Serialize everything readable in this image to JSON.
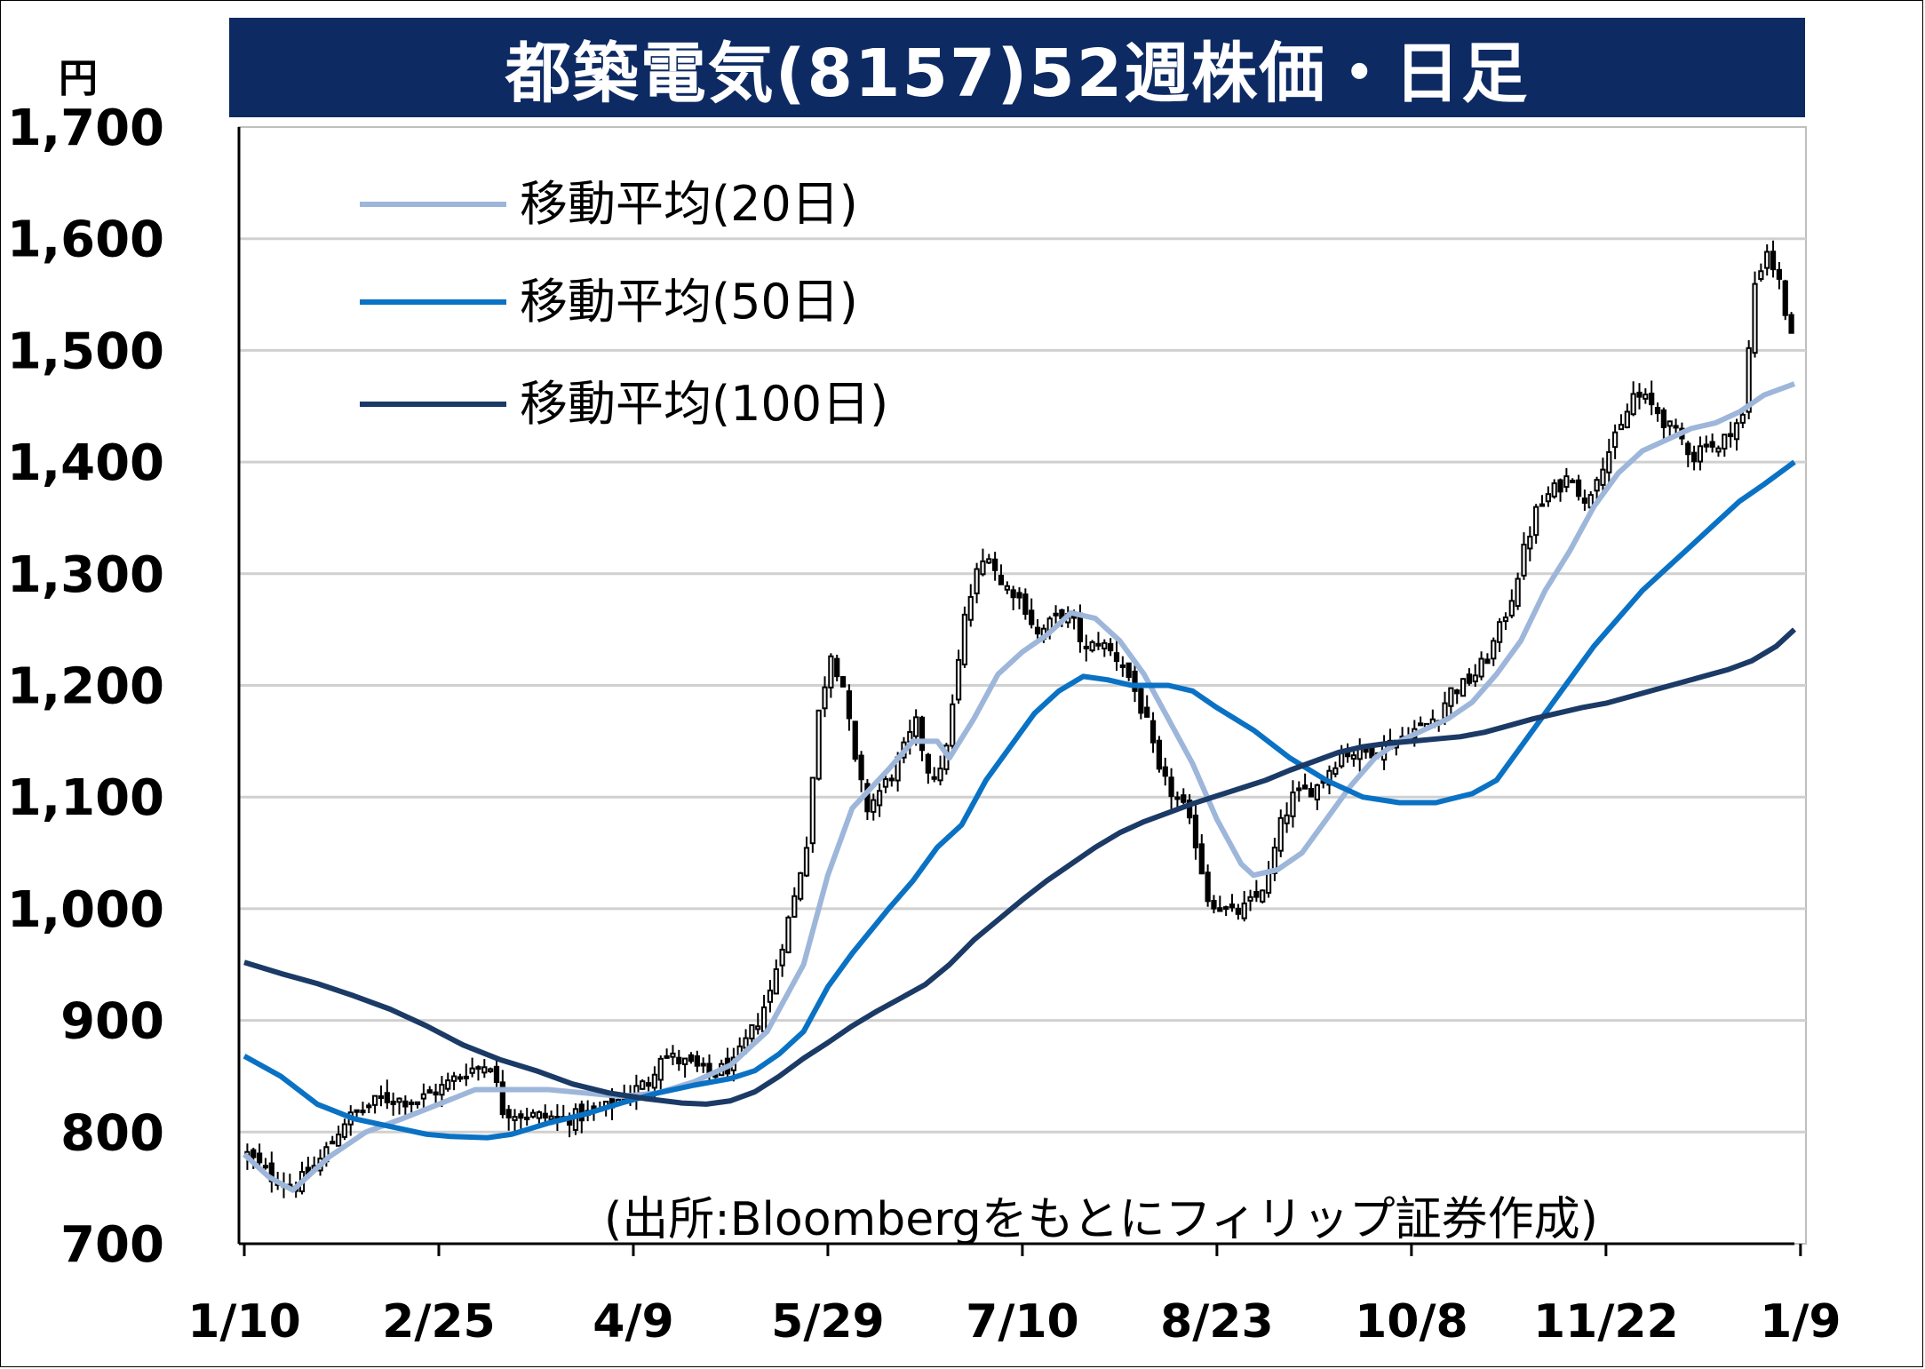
{
  "title": "都築電気(8157)52週株価・日足",
  "unit": "円",
  "source": "(出所:Bloombergをもとにフィリップ証券作成)",
  "colors": {
    "title_bg": "#0d2a63",
    "ma20": "#9db6da",
    "ma50": "#0a72c4",
    "ma100": "#1b3a66",
    "candle": "#000000"
  },
  "chart_data": {
    "type": "candlestick",
    "title": "都築電気(8157)52週株価・日足",
    "ylabel": "円",
    "ylim": [
      700,
      1700
    ],
    "yticks": [
      700,
      800,
      900,
      1000,
      1100,
      1200,
      1300,
      1400,
      1500,
      1600,
      1700
    ],
    "ytick_labels": [
      "700",
      "800",
      "900",
      "1,000",
      "1,100",
      "1,200",
      "1,300",
      "1,400",
      "1,500",
      "1,600",
      "1,700"
    ],
    "xlim": [
      0,
      255
    ],
    "xtick_positions": [
      0,
      32,
      64,
      96,
      128,
      160,
      192,
      224,
      256
    ],
    "xtick_labels": [
      "1/10",
      "2/25",
      "4/9",
      "5/29",
      "7/10",
      "8/23",
      "10/8",
      "11/22",
      "1/9"
    ],
    "grid": true,
    "legend_position": "top-left",
    "close_anchors": [
      [
        0,
        780
      ],
      [
        4,
        760
      ],
      [
        8,
        752
      ],
      [
        12,
        775
      ],
      [
        16,
        810
      ],
      [
        22,
        830
      ],
      [
        28,
        828
      ],
      [
        32,
        840
      ],
      [
        36,
        855
      ],
      [
        40,
        862
      ],
      [
        42,
        820
      ],
      [
        46,
        815
      ],
      [
        52,
        812
      ],
      [
        58,
        818
      ],
      [
        62,
        832
      ],
      [
        66,
        845
      ],
      [
        68,
        870
      ],
      [
        72,
        862
      ],
      [
        76,
        852
      ],
      [
        80,
        860
      ],
      [
        84,
        900
      ],
      [
        86,
        925
      ],
      [
        88,
        970
      ],
      [
        90,
        1010
      ],
      [
        92,
        1060
      ],
      [
        94,
        1175
      ],
      [
        96,
        1230
      ],
      [
        98,
        1200
      ],
      [
        100,
        1130
      ],
      [
        102,
        1090
      ],
      [
        106,
        1120
      ],
      [
        110,
        1165
      ],
      [
        112,
        1125
      ],
      [
        114,
        1120
      ],
      [
        116,
        1180
      ],
      [
        118,
        1260
      ],
      [
        120,
        1300
      ],
      [
        122,
        1320
      ],
      [
        124,
        1290
      ],
      [
        126,
        1285
      ],
      [
        128,
        1270
      ],
      [
        130,
        1245
      ],
      [
        132,
        1255
      ],
      [
        134,
        1265
      ],
      [
        136,
        1255
      ],
      [
        138,
        1230
      ],
      [
        140,
        1240
      ],
      [
        142,
        1230
      ],
      [
        144,
        1220
      ],
      [
        146,
        1195
      ],
      [
        148,
        1165
      ],
      [
        150,
        1120
      ],
      [
        152,
        1105
      ],
      [
        154,
        1090
      ],
      [
        156,
        1060
      ],
      [
        158,
        1010
      ],
      [
        160,
        1002
      ],
      [
        162,
        995
      ],
      [
        164,
        1000
      ],
      [
        166,
        1010
      ],
      [
        168,
        1030
      ],
      [
        170,
        1075
      ],
      [
        172,
        1100
      ],
      [
        176,
        1110
      ],
      [
        180,
        1140
      ],
      [
        184,
        1140
      ],
      [
        188,
        1148
      ],
      [
        192,
        1160
      ],
      [
        194,
        1165
      ],
      [
        196,
        1175
      ],
      [
        198,
        1195
      ],
      [
        200,
        1200
      ],
      [
        202,
        1210
      ],
      [
        204,
        1225
      ],
      [
        206,
        1250
      ],
      [
        208,
        1280
      ],
      [
        210,
        1320
      ],
      [
        212,
        1355
      ],
      [
        214,
        1370
      ],
      [
        216,
        1380
      ],
      [
        218,
        1390
      ],
      [
        220,
        1360
      ],
      [
        222,
        1390
      ],
      [
        224,
        1410
      ],
      [
        226,
        1430
      ],
      [
        228,
        1460
      ],
      [
        230,
        1455
      ],
      [
        232,
        1445
      ],
      [
        234,
        1430
      ],
      [
        236,
        1420
      ],
      [
        238,
        1405
      ],
      [
        240,
        1420
      ],
      [
        242,
        1410
      ],
      [
        244,
        1430
      ],
      [
        246,
        1440
      ],
      [
        248,
        1560
      ],
      [
        250,
        1590
      ],
      [
        252,
        1560
      ],
      [
        254,
        1510
      ],
      [
        255,
        1490
      ]
    ],
    "series": [
      {
        "name": "移動平均(20日)",
        "points": [
          [
            0,
            780
          ],
          [
            4,
            760
          ],
          [
            8,
            748
          ],
          [
            14,
            778
          ],
          [
            20,
            800
          ],
          [
            26,
            812
          ],
          [
            32,
            825
          ],
          [
            38,
            838
          ],
          [
            44,
            838
          ],
          [
            50,
            838
          ],
          [
            56,
            835
          ],
          [
            62,
            832
          ],
          [
            68,
            835
          ],
          [
            74,
            845
          ],
          [
            80,
            860
          ],
          [
            86,
            890
          ],
          [
            92,
            950
          ],
          [
            96,
            1030
          ],
          [
            100,
            1090
          ],
          [
            106,
            1125
          ],
          [
            110,
            1150
          ],
          [
            114,
            1150
          ],
          [
            116,
            1135
          ],
          [
            120,
            1170
          ],
          [
            124,
            1210
          ],
          [
            128,
            1230
          ],
          [
            132,
            1245
          ],
          [
            136,
            1265
          ],
          [
            140,
            1260
          ],
          [
            144,
            1240
          ],
          [
            148,
            1210
          ],
          [
            152,
            1170
          ],
          [
            156,
            1130
          ],
          [
            160,
            1080
          ],
          [
            164,
            1040
          ],
          [
            166,
            1030
          ],
          [
            170,
            1035
          ],
          [
            174,
            1050
          ],
          [
            178,
            1080
          ],
          [
            182,
            1110
          ],
          [
            186,
            1135
          ],
          [
            190,
            1150
          ],
          [
            194,
            1160
          ],
          [
            198,
            1170
          ],
          [
            202,
            1185
          ],
          [
            206,
            1210
          ],
          [
            210,
            1240
          ],
          [
            214,
            1285
          ],
          [
            218,
            1320
          ],
          [
            222,
            1360
          ],
          [
            226,
            1390
          ],
          [
            230,
            1410
          ],
          [
            234,
            1420
          ],
          [
            238,
            1430
          ],
          [
            242,
            1435
          ],
          [
            246,
            1445
          ],
          [
            250,
            1460
          ],
          [
            255,
            1470
          ]
        ]
      },
      {
        "name": "移動平均(50日)",
        "points": [
          [
            0,
            868
          ],
          [
            6,
            850
          ],
          [
            12,
            825
          ],
          [
            18,
            812
          ],
          [
            24,
            805
          ],
          [
            30,
            798
          ],
          [
            34,
            796
          ],
          [
            40,
            795
          ],
          [
            44,
            798
          ],
          [
            50,
            808
          ],
          [
            56,
            816
          ],
          [
            62,
            826
          ],
          [
            68,
            835
          ],
          [
            74,
            842
          ],
          [
            80,
            848
          ],
          [
            84,
            855
          ],
          [
            88,
            870
          ],
          [
            92,
            890
          ],
          [
            96,
            930
          ],
          [
            100,
            960
          ],
          [
            106,
            1000
          ],
          [
            110,
            1025
          ],
          [
            114,
            1055
          ],
          [
            118,
            1075
          ],
          [
            122,
            1115
          ],
          [
            126,
            1145
          ],
          [
            130,
            1175
          ],
          [
            134,
            1195
          ],
          [
            138,
            1208
          ],
          [
            142,
            1205
          ],
          [
            146,
            1200
          ],
          [
            152,
            1200
          ],
          [
            156,
            1195
          ],
          [
            160,
            1180
          ],
          [
            166,
            1160
          ],
          [
            172,
            1135
          ],
          [
            178,
            1115
          ],
          [
            184,
            1100
          ],
          [
            190,
            1095
          ],
          [
            196,
            1095
          ],
          [
            202,
            1103
          ],
          [
            206,
            1115
          ],
          [
            210,
            1145
          ],
          [
            214,
            1175
          ],
          [
            218,
            1205
          ],
          [
            222,
            1235
          ],
          [
            226,
            1260
          ],
          [
            230,
            1285
          ],
          [
            234,
            1305
          ],
          [
            238,
            1325
          ],
          [
            242,
            1345
          ],
          [
            246,
            1365
          ],
          [
            250,
            1380
          ],
          [
            255,
            1400
          ]
        ]
      },
      {
        "name": "移動平均(100日)",
        "points": [
          [
            0,
            952
          ],
          [
            6,
            942
          ],
          [
            12,
            933
          ],
          [
            18,
            922
          ],
          [
            24,
            910
          ],
          [
            30,
            895
          ],
          [
            36,
            878
          ],
          [
            42,
            865
          ],
          [
            48,
            855
          ],
          [
            54,
            843
          ],
          [
            60,
            835
          ],
          [
            66,
            830
          ],
          [
            72,
            826
          ],
          [
            76,
            825
          ],
          [
            80,
            828
          ],
          [
            84,
            836
          ],
          [
            88,
            850
          ],
          [
            92,
            866
          ],
          [
            96,
            880
          ],
          [
            100,
            895
          ],
          [
            104,
            908
          ],
          [
            108,
            920
          ],
          [
            112,
            932
          ],
          [
            116,
            950
          ],
          [
            120,
            972
          ],
          [
            124,
            990
          ],
          [
            128,
            1008
          ],
          [
            132,
            1025
          ],
          [
            136,
            1040
          ],
          [
            140,
            1055
          ],
          [
            144,
            1068
          ],
          [
            148,
            1078
          ],
          [
            152,
            1086
          ],
          [
            156,
            1094
          ],
          [
            160,
            1101
          ],
          [
            164,
            1108
          ],
          [
            168,
            1115
          ],
          [
            172,
            1124
          ],
          [
            176,
            1132
          ],
          [
            180,
            1140
          ],
          [
            184,
            1145
          ],
          [
            188,
            1148
          ],
          [
            192,
            1150
          ],
          [
            196,
            1152
          ],
          [
            200,
            1154
          ],
          [
            204,
            1158
          ],
          [
            208,
            1164
          ],
          [
            212,
            1170
          ],
          [
            216,
            1175
          ],
          [
            220,
            1180
          ],
          [
            224,
            1184
          ],
          [
            228,
            1190
          ],
          [
            232,
            1196
          ],
          [
            236,
            1202
          ],
          [
            240,
            1208
          ],
          [
            244,
            1214
          ],
          [
            248,
            1222
          ],
          [
            252,
            1235
          ],
          [
            255,
            1250
          ]
        ]
      }
    ]
  }
}
